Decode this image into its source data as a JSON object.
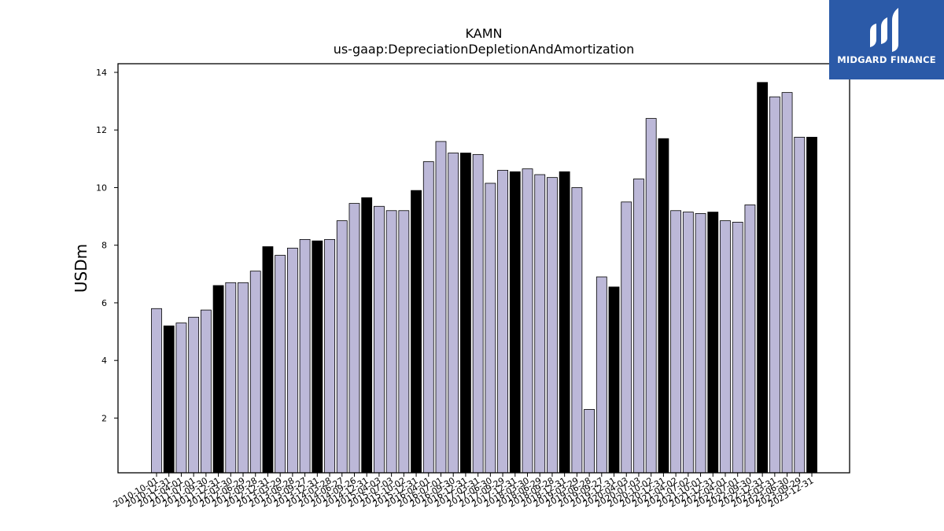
{
  "brand": {
    "name": "MIDGARD FINANCE",
    "color": "#2b5aa8"
  },
  "chart_data": {
    "type": "bar",
    "title": "KAMN",
    "subtitle": "us-gaap:DepreciationDepletionAndAmortization",
    "xlabel": "",
    "ylabel": "USDm",
    "ylim": [
      0.1,
      14.3
    ],
    "yticks": [
      2,
      4,
      6,
      8,
      10,
      12,
      14
    ],
    "grid": false,
    "colors": {
      "quarter": "#bcb8d8",
      "annual": "#000000",
      "edge": "#000000"
    },
    "categories": [
      "2010-10-01",
      "2010-12-31",
      "2011-04-01",
      "2011-07-01",
      "2011-09-30",
      "2011-12-31",
      "2012-03-30",
      "2012-06-29",
      "2012-09-28",
      "2012-12-31",
      "2013-03-29",
      "2013-06-28",
      "2013-09-27",
      "2013-12-31",
      "2014-03-28",
      "2014-06-27",
      "2014-09-26",
      "2014-12-31",
      "2015-04-03",
      "2015-07-03",
      "2015-10-02",
      "2015-12-31",
      "2016-04-01",
      "2016-07-01",
      "2016-09-30",
      "2016-12-31",
      "2017-03-31",
      "2017-06-30",
      "2017-09-29",
      "2017-12-31",
      "2018-03-30",
      "2018-06-29",
      "2018-09-28",
      "2018-12-31",
      "2019-03-29",
      "2019-06-28",
      "2019-09-27",
      "2019-12-31",
      "2020-04-03",
      "2020-07-03",
      "2020-10-02",
      "2020-12-31",
      "2021-04-02",
      "2021-07-02",
      "2021-10-01",
      "2021-12-31",
      "2022-04-01",
      "2022-07-01",
      "2022-09-30",
      "2022-12-31",
      "2023-03-31",
      "2023-06-30",
      "2023-09-29",
      "2023-12-31"
    ],
    "values": [
      5.8,
      5.2,
      5.3,
      5.5,
      5.75,
      6.6,
      6.7,
      6.7,
      7.1,
      7.95,
      7.65,
      7.9,
      8.2,
      8.15,
      8.2,
      8.85,
      9.45,
      9.65,
      9.35,
      9.2,
      9.2,
      9.9,
      10.9,
      11.6,
      11.2,
      11.2,
      11.15,
      10.15,
      10.6,
      10.55,
      10.65,
      10.45,
      10.35,
      10.55,
      10.0,
      2.3,
      6.9,
      6.55,
      9.5,
      10.3,
      12.4,
      11.7,
      9.2,
      9.15,
      9.1,
      9.15,
      8.85,
      8.8,
      9.4,
      13.65,
      13.15,
      13.3,
      11.75,
      11.75
    ],
    "annual": [
      false,
      true,
      false,
      false,
      false,
      true,
      false,
      false,
      false,
      true,
      false,
      false,
      false,
      true,
      false,
      false,
      false,
      true,
      false,
      false,
      false,
      true,
      false,
      false,
      false,
      true,
      false,
      false,
      false,
      true,
      false,
      false,
      false,
      true,
      false,
      false,
      false,
      true,
      false,
      false,
      false,
      true,
      false,
      false,
      false,
      true,
      false,
      false,
      false,
      true,
      false,
      false,
      false,
      true
    ]
  }
}
